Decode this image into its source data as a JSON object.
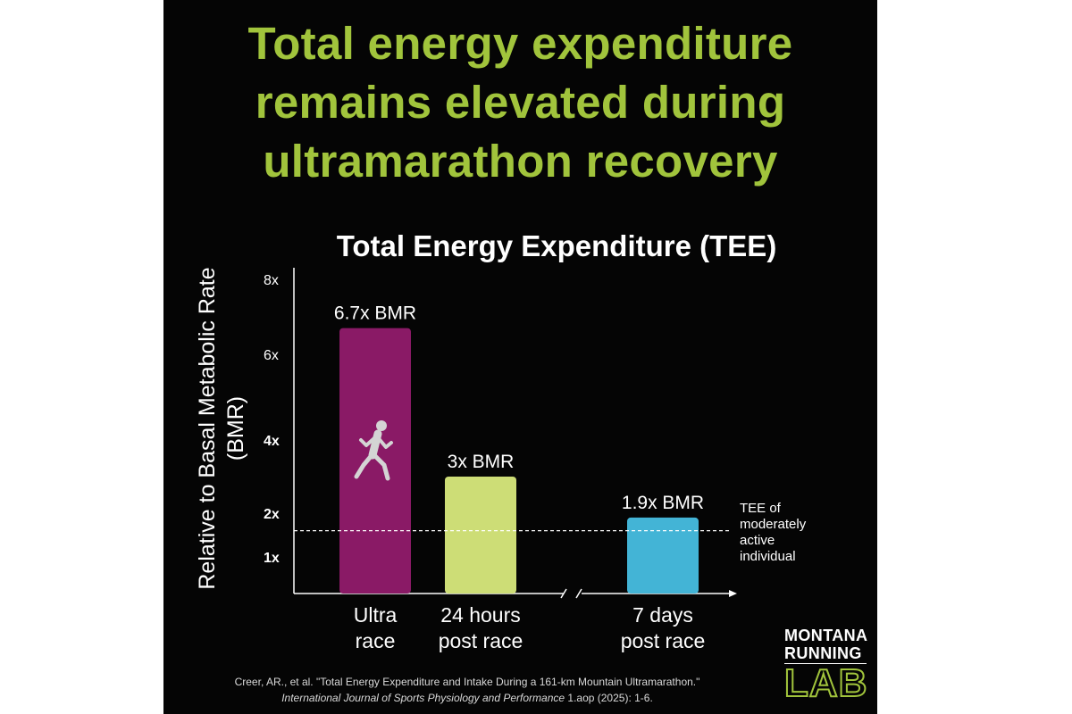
{
  "headline": [
    "Total energy expenditure",
    "remains elevated during",
    "ultramarathon recovery"
  ],
  "colors": {
    "headline": "#a1c43c",
    "bar_ultra": "#8a1a66",
    "bar_24h": "#cddd76",
    "bar_7d": "#43b4d6",
    "background": "#050505"
  },
  "chart_data": {
    "type": "bar",
    "title": "Total Energy Expenditure (TEE)",
    "ylabel": "Relative to Basal Metabolic Rate (BMR)",
    "ylabel_lines": [
      "Relative to Basal Metabolic Rate",
      "(BMR)"
    ],
    "yticks": [
      {
        "value": 1,
        "label": "1x",
        "bold": true
      },
      {
        "value": 2,
        "label": "2x",
        "bold": true
      },
      {
        "value": 4,
        "label": "4x",
        "bold": true
      },
      {
        "value": 6,
        "label": "6x",
        "bold": false
      },
      {
        "value": 8,
        "label": "8x",
        "bold": false
      }
    ],
    "ylim": [
      0,
      8
    ],
    "bars": [
      {
        "name": "Ultra race",
        "category_lines": [
          "Ultra",
          "race"
        ],
        "value": 6.7,
        "label": "6.7x BMR",
        "color": "#8a1a66",
        "icon": "runner-icon"
      },
      {
        "name": "24 hours post race",
        "category_lines": [
          "24 hours",
          "post race"
        ],
        "value": 3,
        "label": "3x BMR",
        "color": "#cddd76"
      },
      {
        "name": "7 days post race",
        "category_lines": [
          "7 days",
          "post race"
        ],
        "value": 1.9,
        "label": "1.9x BMR",
        "color": "#43b4d6"
      }
    ],
    "axis_break": "between 24 hours and 7 days",
    "reference_line": {
      "value": 1.6,
      "style": "dashed",
      "label_lines": [
        "TEE of",
        "moderately",
        "active",
        "individual"
      ]
    }
  },
  "citation": {
    "line1": "Creer, AR., et al. \"Total Energy Expenditure and Intake During a 161-km Mountain Ultramarathon.\"",
    "journal": "International Journal of Sports Physiology and Performance",
    "details": " 1.aop (2025): 1-6."
  },
  "logo": {
    "line1": "MONTANA",
    "line2": "RUNNING",
    "line3": "LAB"
  }
}
